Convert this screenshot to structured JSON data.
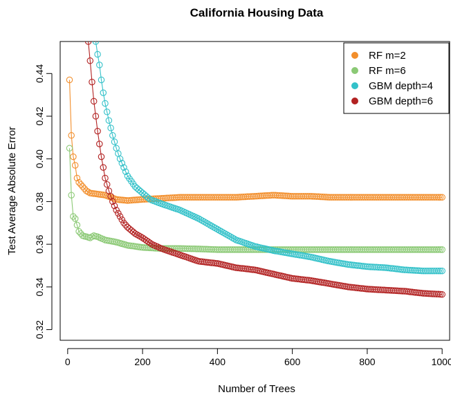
{
  "chart_data": {
    "type": "line",
    "title": "California Housing Data",
    "xlabel": "Number of Trees",
    "ylabel": "Test Average Absolute Error",
    "xlim": [
      -20,
      1020
    ],
    "ylim": [
      0.315,
      0.455
    ],
    "xticks": [
      0,
      200,
      400,
      600,
      800,
      1000
    ],
    "yticks": [
      0.32,
      0.34,
      0.36,
      0.38,
      0.4,
      0.42,
      0.44
    ],
    "grid": false,
    "legend_position": "top-right",
    "markers": "open-circle",
    "series": [
      {
        "name": "RF m=2",
        "color": "#F28E2B",
        "x": [
          5,
          10,
          15,
          20,
          25,
          30,
          40,
          50,
          60,
          80,
          100,
          130,
          160,
          200,
          250,
          300,
          350,
          400,
          450,
          500,
          550,
          600,
          650,
          700,
          800,
          900,
          1000
        ],
        "y": [
          0.437,
          0.411,
          0.401,
          0.397,
          0.391,
          0.389,
          0.387,
          0.385,
          0.384,
          0.3835,
          0.383,
          0.381,
          0.3805,
          0.381,
          0.3815,
          0.382,
          0.382,
          0.382,
          0.382,
          0.3825,
          0.383,
          0.3825,
          0.3825,
          0.382,
          0.382,
          0.382,
          0.382
        ]
      },
      {
        "name": "RF m=6",
        "color": "#8BC975",
        "x": [
          5,
          10,
          15,
          20,
          25,
          30,
          40,
          50,
          60,
          70,
          80,
          100,
          130,
          160,
          200,
          250,
          300,
          350,
          400,
          450,
          500,
          600,
          700,
          800,
          900,
          1000
        ],
        "y": [
          0.405,
          0.383,
          0.373,
          0.372,
          0.369,
          0.366,
          0.364,
          0.3635,
          0.363,
          0.364,
          0.3635,
          0.362,
          0.361,
          0.3595,
          0.3585,
          0.358,
          0.358,
          0.3578,
          0.3575,
          0.3575,
          0.3575,
          0.3575,
          0.3575,
          0.3575,
          0.3575,
          0.3575
        ]
      },
      {
        "name": "GBM depth=4",
        "color": "#33C1C9",
        "x": [
          75,
          80,
          85,
          90,
          95,
          100,
          110,
          120,
          130,
          140,
          150,
          160,
          180,
          200,
          220,
          250,
          300,
          350,
          400,
          450,
          500,
          550,
          600,
          650,
          700,
          750,
          800,
          850,
          900,
          950,
          1000
        ],
        "y": [
          0.455,
          0.449,
          0.444,
          0.437,
          0.431,
          0.426,
          0.418,
          0.411,
          0.405,
          0.4,
          0.396,
          0.392,
          0.387,
          0.384,
          0.381,
          0.379,
          0.376,
          0.372,
          0.367,
          0.362,
          0.359,
          0.357,
          0.3555,
          0.354,
          0.352,
          0.3505,
          0.3495,
          0.349,
          0.348,
          0.3475,
          0.3475
        ]
      },
      {
        "name": "GBM depth=6",
        "color": "#B22222",
        "x": [
          55,
          60,
          65,
          70,
          75,
          80,
          85,
          90,
          95,
          100,
          110,
          120,
          130,
          140,
          150,
          160,
          180,
          200,
          225,
          250,
          300,
          350,
          400,
          450,
          500,
          550,
          600,
          650,
          700,
          750,
          800,
          850,
          900,
          950,
          1000
        ],
        "y": [
          0.455,
          0.446,
          0.436,
          0.427,
          0.42,
          0.413,
          0.407,
          0.401,
          0.396,
          0.391,
          0.385,
          0.38,
          0.376,
          0.373,
          0.37,
          0.368,
          0.365,
          0.363,
          0.36,
          0.358,
          0.355,
          0.352,
          0.351,
          0.349,
          0.348,
          0.346,
          0.344,
          0.343,
          0.3415,
          0.34,
          0.339,
          0.3385,
          0.338,
          0.337,
          0.3365
        ]
      }
    ]
  }
}
